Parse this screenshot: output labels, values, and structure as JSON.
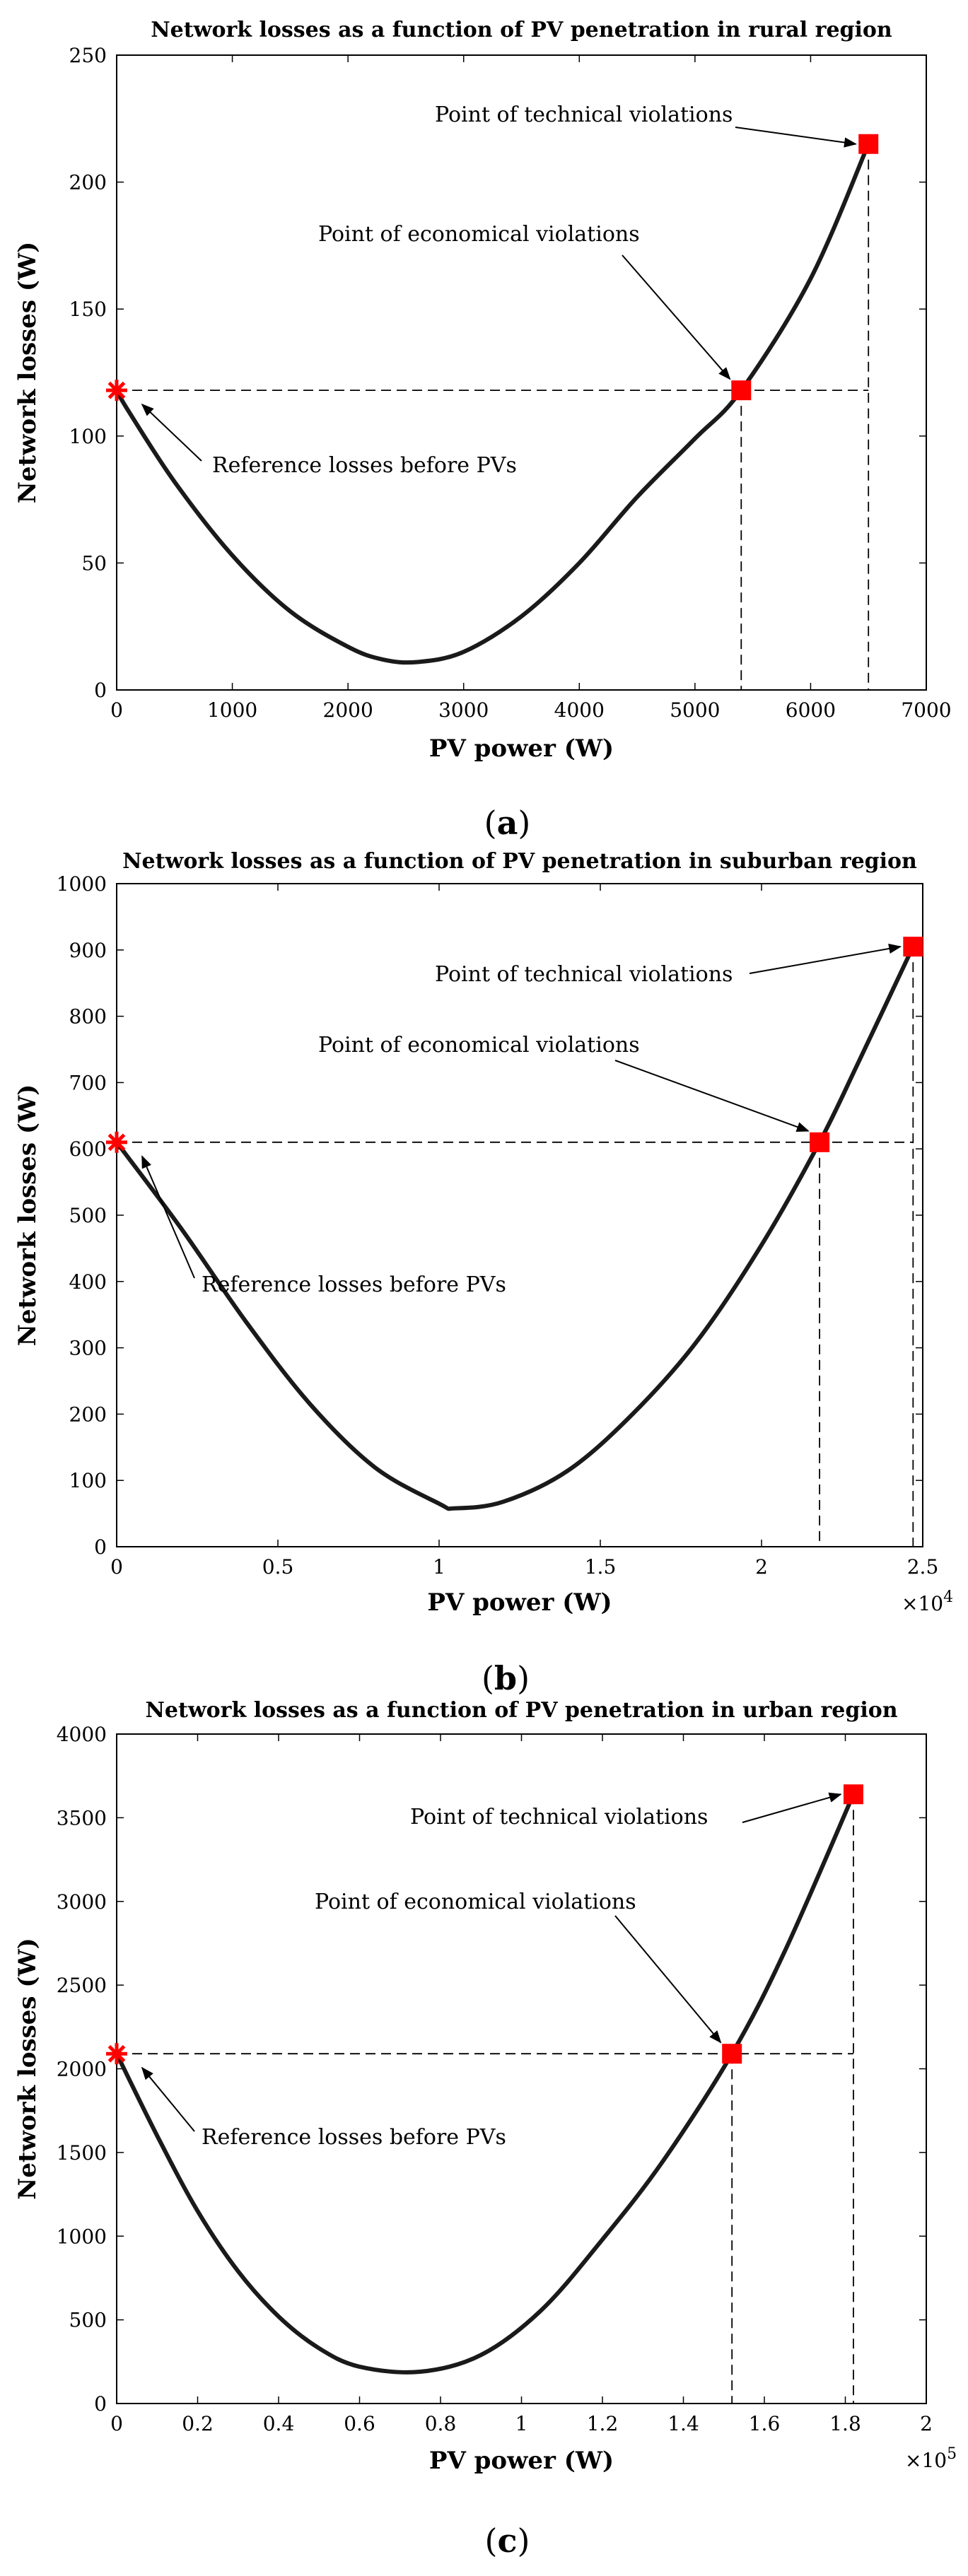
{
  "chart_data": [
    {
      "type": "line",
      "title": "Network losses as a function of PV penetration in rural region",
      "xlabel": "PV power (W)",
      "ylabel": "Network losses (W)",
      "xlim": [
        0,
        7000
      ],
      "ylim": [
        0,
        250
      ],
      "x_ticks": [
        0,
        1000,
        2000,
        3000,
        4000,
        5000,
        6000,
        7000
      ],
      "x_tick_labels": [
        "0",
        "1000",
        "2000",
        "3000",
        "4000",
        "5000",
        "6000",
        "7000"
      ],
      "y_ticks": [
        0,
        50,
        100,
        150,
        200,
        250
      ],
      "y_tick_labels": [
        "0",
        "50",
        "100",
        "150",
        "200",
        "250"
      ],
      "x_multiplier": "",
      "series": [
        {
          "x": [
            0,
            100,
            500,
            1000,
            1500,
            2000,
            2300,
            2600,
            3000,
            3500,
            4000,
            4500,
            5000,
            5400,
            6000,
            6500
          ],
          "y": [
            118,
            110,
            82,
            53,
            31,
            17,
            12,
            11,
            15,
            29,
            50,
            76,
            99,
            118,
            162,
            215
          ]
        }
      ],
      "reference_point": {
        "x": 0,
        "y": 118,
        "label": "Reference losses before PVs"
      },
      "economical_point": {
        "x": 5400,
        "y": 118,
        "label": "Point of economical violations"
      },
      "technical_point": {
        "x": 6500,
        "y": 215,
        "label": "Point of technical violations"
      },
      "caption": "a"
    },
    {
      "type": "line",
      "title": "Network losses as a function of PV penetration in suburban region",
      "xlabel": "PV power (W)",
      "ylabel": "Network losses (W)",
      "xlim": [
        0,
        25000
      ],
      "ylim": [
        0,
        1000
      ],
      "x_ticks": [
        0,
        5000,
        10000,
        15000,
        20000,
        25000
      ],
      "x_tick_labels": [
        "0",
        "0.5",
        "1",
        "1.5",
        "2",
        "2.5"
      ],
      "y_ticks": [
        0,
        100,
        200,
        300,
        400,
        500,
        600,
        700,
        800,
        900,
        1000
      ],
      "y_tick_labels": [
        "0",
        "100",
        "200",
        "300",
        "400",
        "500",
        "600",
        "700",
        "800",
        "900",
        "1000"
      ],
      "x_multiplier": "×10",
      "x_multiplier_exp": "4",
      "series": [
        {
          "x": [
            0,
            2000,
            4000,
            6000,
            8000,
            10000,
            10500,
            12000,
            14000,
            16000,
            18000,
            20000,
            21800,
            23000,
            24700
          ],
          "y": [
            610,
            480,
            340,
            215,
            120,
            65,
            58,
            68,
            115,
            200,
            310,
            455,
            610,
            730,
            905
          ]
        }
      ],
      "reference_point": {
        "x": 0,
        "y": 610,
        "label": "Reference losses before PVs"
      },
      "economical_point": {
        "x": 21800,
        "y": 610,
        "label": "Point of economical violations"
      },
      "technical_point": {
        "x": 24700,
        "y": 905,
        "label": "Point of technical violations"
      },
      "caption": "b"
    },
    {
      "type": "line",
      "title": "Network losses as a function of PV penetration in urban region",
      "xlabel": "PV power (W)",
      "ylabel": "Network losses (W)",
      "xlim": [
        0,
        200000
      ],
      "ylim": [
        0,
        4000
      ],
      "x_ticks": [
        0,
        20000,
        40000,
        60000,
        80000,
        100000,
        120000,
        140000,
        160000,
        180000,
        200000
      ],
      "x_tick_labels": [
        "0",
        "0.2",
        "0.4",
        "0.6",
        "0.8",
        "1",
        "1.2",
        "1.4",
        "1.6",
        "1.8",
        "2"
      ],
      "y_ticks": [
        0,
        500,
        1000,
        1500,
        2000,
        2500,
        3000,
        3500,
        4000
      ],
      "y_tick_labels": [
        "0",
        "500",
        "1000",
        "1500",
        "2000",
        "2500",
        "3000",
        "3500",
        "4000"
      ],
      "x_multiplier": "×10",
      "x_multiplier_exp": "5",
      "series": [
        {
          "x": [
            0,
            10000,
            20000,
            30000,
            40000,
            50000,
            60000,
            75000,
            90000,
            105000,
            120000,
            135000,
            152000,
            165000,
            182000
          ],
          "y": [
            2090,
            1600,
            1150,
            790,
            520,
            330,
            220,
            190,
            290,
            560,
            980,
            1450,
            2090,
            2700,
            3640
          ]
        }
      ],
      "reference_point": {
        "x": 0,
        "y": 2090,
        "label": "Reference losses before PVs"
      },
      "economical_point": {
        "x": 152000,
        "y": 2090,
        "label": "Point of economical violations"
      },
      "technical_point": {
        "x": 182000,
        "y": 3640,
        "label": "Point of technical violations"
      },
      "caption": "c"
    }
  ]
}
